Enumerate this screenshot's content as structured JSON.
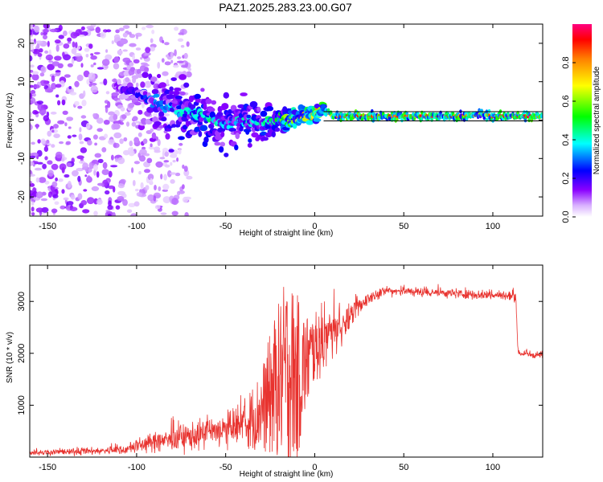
{
  "title": "PAZ1.2025.283.23.00.G07",
  "chart_data": [
    {
      "type": "heatmap",
      "name": "spectrogram",
      "xlabel": "Height of straight line (km)",
      "ylabel": "Frequency (Hz)",
      "xlim": [
        -160,
        128
      ],
      "ylim": [
        -25,
        25
      ],
      "xticks": [
        -150,
        -100,
        -50,
        0,
        50,
        100
      ],
      "yticks": [
        -20,
        -10,
        0,
        10,
        20
      ],
      "colorbar": {
        "label": "Normalized spectral amplitude",
        "range": [
          0.0,
          1.0
        ],
        "ticks": [
          0.0,
          0.2,
          0.4,
          0.6,
          0.8
        ],
        "tick_labels": [
          "0.0",
          "0.2",
          "0.4",
          "0.6",
          "0.8"
        ]
      },
      "ridge": {
        "x": [
          -110,
          -100,
          -90,
          -80,
          -70,
          -60,
          -50,
          -40,
          -30,
          -20,
          -10,
          0,
          5,
          10,
          20,
          30,
          50,
          80,
          95,
          100,
          128
        ],
        "freq": [
          9,
          7,
          5,
          3,
          2,
          0.5,
          -1,
          0,
          -1,
          0.5,
          0,
          1.5,
          3,
          1,
          1,
          1,
          1,
          1,
          1.5,
          1,
          1
        ],
        "amplitude": [
          0.15,
          0.2,
          0.3,
          0.35,
          0.4,
          0.45,
          0.35,
          0.4,
          0.4,
          0.5,
          0.7,
          0.8,
          0.6,
          0.85,
          0.9,
          0.9,
          0.9,
          0.9,
          0.6,
          0.9,
          0.9
        ]
      },
      "noise_region_x": [
        -160,
        -85
      ]
    },
    {
      "type": "line",
      "name": "snr",
      "xlabel": "Height of straight line (km)",
      "ylabel": "SNR (10 * v/v)",
      "xlim": [
        -160,
        128
      ],
      "ylim": [
        0,
        3700
      ],
      "xticks": [
        -150,
        -100,
        -50,
        0,
        50,
        100
      ],
      "yticks": [
        1000,
        2000,
        3000
      ],
      "color": "#e8322e",
      "envelope": {
        "x": [
          -160,
          -140,
          -120,
          -105,
          -100,
          -90,
          -80,
          -70,
          -60,
          -50,
          -40,
          -30,
          -25,
          -20,
          -15,
          -10,
          -5,
          0,
          5,
          10,
          15,
          20,
          25,
          30,
          35,
          40,
          50,
          60,
          70,
          80,
          90,
          100,
          110,
          113,
          114,
          115,
          120,
          128
        ],
        "mean": [
          90,
          100,
          120,
          150,
          220,
          280,
          340,
          400,
          450,
          520,
          620,
          900,
          1200,
          1500,
          1700,
          1500,
          1800,
          2100,
          2300,
          2400,
          2500,
          2700,
          2900,
          3050,
          3150,
          3200,
          3200,
          3180,
          3170,
          3150,
          3130,
          3120,
          3100,
          3080,
          2050,
          2000,
          1980,
          1970
        ],
        "spread": [
          60,
          70,
          80,
          100,
          150,
          200,
          250,
          300,
          320,
          380,
          450,
          700,
          1100,
          1400,
          1700,
          1500,
          900,
          600,
          700,
          500,
          400,
          250,
          200,
          150,
          120,
          100,
          100,
          100,
          100,
          100,
          100,
          100,
          100,
          100,
          100,
          100,
          80,
          80
        ]
      }
    }
  ]
}
